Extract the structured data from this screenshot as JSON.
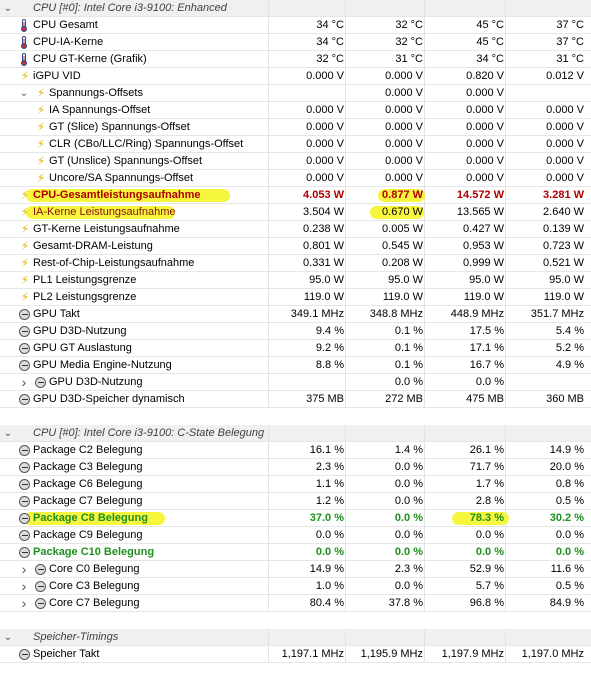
{
  "sections": [
    {
      "title": "CPU [#0]: Intel Core i3-9100: Enhanced",
      "rows": [
        {
          "icon": "thermometer-icon",
          "label": "CPU Gesamt",
          "values": [
            "34 °C",
            "32 °C",
            "45 °C",
            "37 °C"
          ]
        },
        {
          "icon": "thermometer-icon",
          "label": "CPU-IA-Kerne",
          "values": [
            "34 °C",
            "32 °C",
            "45 °C",
            "37 °C"
          ]
        },
        {
          "icon": "thermometer-icon",
          "label": "CPU GT-Kerne (Grafik)",
          "values": [
            "32 °C",
            "31 °C",
            "34 °C",
            "31 °C"
          ]
        },
        {
          "icon": "bolt-icon",
          "label": "iGPU VID",
          "values": [
            "0.000 V",
            "0.000 V",
            "0.820 V",
            "0.012 V"
          ]
        },
        {
          "icon": "bolt-icon",
          "label": "Spannungs-Offsets",
          "values": [
            "",
            "0.000 V",
            "0.000 V",
            ""
          ],
          "expand": true,
          "indent": 1
        },
        {
          "icon": "bolt-icon",
          "label": "IA Spannungs-Offset",
          "values": [
            "0.000 V",
            "0.000 V",
            "0.000 V",
            "0.000 V"
          ],
          "indent": 2
        },
        {
          "icon": "bolt-icon",
          "label": "GT (Slice) Spannungs-Offset",
          "values": [
            "0.000 V",
            "0.000 V",
            "0.000 V",
            "0.000 V"
          ],
          "indent": 2
        },
        {
          "icon": "bolt-icon",
          "label": "CLR (CBo/LLC/Ring) Spannungs-Offset",
          "values": [
            "0.000 V",
            "0.000 V",
            "0.000 V",
            "0.000 V"
          ],
          "indent": 2
        },
        {
          "icon": "bolt-icon",
          "label": "GT (Unslice) Spannungs-Offset",
          "values": [
            "0.000 V",
            "0.000 V",
            "0.000 V",
            "0.000 V"
          ],
          "indent": 2
        },
        {
          "icon": "bolt-icon",
          "label": "Uncore/SA Spannungs-Offset",
          "values": [
            "0.000 V",
            "0.000 V",
            "0.000 V",
            "0.000 V"
          ],
          "indent": 2
        },
        {
          "icon": "bolt-icon",
          "label": "CPU-Gesamtleistungsaufnahme",
          "values": [
            "4.053 W",
            "0.877 W",
            "14.572 W",
            "3.281 W"
          ],
          "style": "red"
        },
        {
          "icon": "bolt-icon",
          "label": "IA-Kerne Leistungsaufnahme",
          "values": [
            "3.504 W",
            "0.670 W",
            "13.565 W",
            "2.640 W"
          ],
          "style": "darkred"
        },
        {
          "icon": "bolt-icon",
          "label": "GT-Kerne Leistungsaufnahme",
          "values": [
            "0.238 W",
            "0.005 W",
            "0.427 W",
            "0.139 W"
          ]
        },
        {
          "icon": "bolt-icon",
          "label": "Gesamt-DRAM-Leistung",
          "values": [
            "0.801 W",
            "0.545 W",
            "0.953 W",
            "0.723 W"
          ]
        },
        {
          "icon": "bolt-icon",
          "label": "Rest-of-Chip-Leistungsaufnahme",
          "values": [
            "0.331 W",
            "0.208 W",
            "0.999 W",
            "0.521 W"
          ]
        },
        {
          "icon": "bolt-icon",
          "label": "PL1 Leistungsgrenze",
          "values": [
            "95.0 W",
            "95.0 W",
            "95.0 W",
            "95.0 W"
          ]
        },
        {
          "icon": "bolt-icon",
          "label": "PL2 Leistungsgrenze",
          "values": [
            "119.0 W",
            "119.0 W",
            "119.0 W",
            "119.0 W"
          ]
        },
        {
          "icon": "gauge-icon",
          "label": "GPU Takt",
          "values": [
            "349.1 MHz",
            "348.8 MHz",
            "448.9 MHz",
            "351.7 MHz"
          ]
        },
        {
          "icon": "gauge-icon",
          "label": "GPU D3D-Nutzung",
          "values": [
            "9.4 %",
            "0.1 %",
            "17.5 %",
            "5.4 %"
          ]
        },
        {
          "icon": "gauge-icon",
          "label": "GPU GT Auslastung",
          "values": [
            "9.2 %",
            "0.1 %",
            "17.1 %",
            "5.2 %"
          ]
        },
        {
          "icon": "gauge-icon",
          "label": "GPU Media Engine-Nutzung",
          "values": [
            "8.8 %",
            "0.1 %",
            "16.7 %",
            "4.9 %"
          ]
        },
        {
          "icon": "gauge-icon",
          "label": "GPU D3D-Nutzung",
          "values": [
            "",
            "0.0 %",
            "0.0 %",
            ""
          ],
          "expand": true,
          "indent": 1,
          "collapsed": true
        },
        {
          "icon": "gauge-icon",
          "label": "GPU D3D-Speicher dynamisch",
          "values": [
            "375 MB",
            "272 MB",
            "475 MB",
            "360 MB"
          ]
        }
      ]
    },
    {
      "title": "CPU [#0]: Intel Core i3-9100: C-State Belegung",
      "rows": [
        {
          "icon": "gauge-icon",
          "label": "Package C2 Belegung",
          "values": [
            "16.1 %",
            "1.4 %",
            "26.1 %",
            "14.9 %"
          ]
        },
        {
          "icon": "gauge-icon",
          "label": "Package C3 Belegung",
          "values": [
            "2.3 %",
            "0.0 %",
            "71.7 %",
            "20.0 %"
          ]
        },
        {
          "icon": "gauge-icon",
          "label": "Package C6 Belegung",
          "values": [
            "1.1 %",
            "0.0 %",
            "1.7 %",
            "0.8 %"
          ]
        },
        {
          "icon": "gauge-icon",
          "label": "Package C7 Belegung",
          "values": [
            "1.2 %",
            "0.0 %",
            "2.8 %",
            "0.5 %"
          ]
        },
        {
          "icon": "gauge-icon",
          "label": "Package C8 Belegung",
          "values": [
            "37.0 %",
            "0.0 %",
            "78.3 %",
            "30.2 %"
          ],
          "style": "green"
        },
        {
          "icon": "gauge-icon",
          "label": "Package C9 Belegung",
          "values": [
            "0.0 %",
            "0.0 %",
            "0.0 %",
            "0.0 %"
          ]
        },
        {
          "icon": "gauge-icon",
          "label": "Package C10 Belegung",
          "values": [
            "0.0 %",
            "0.0 %",
            "0.0 %",
            "0.0 %"
          ],
          "style": "green"
        },
        {
          "icon": "gauge-icon",
          "label": "Core C0 Belegung",
          "values": [
            "14.9 %",
            "2.3 %",
            "52.9 %",
            "11.6 %"
          ],
          "expand": true,
          "indent": 1,
          "collapsed": true
        },
        {
          "icon": "gauge-icon",
          "label": "Core C3 Belegung",
          "values": [
            "1.0 %",
            "0.0 %",
            "5.7 %",
            "0.5 %"
          ],
          "expand": true,
          "indent": 1,
          "collapsed": true
        },
        {
          "icon": "gauge-icon",
          "label": "Core C7 Belegung",
          "values": [
            "80.4 %",
            "37.8 %",
            "96.8 %",
            "84.9 %"
          ],
          "expand": true,
          "indent": 1,
          "collapsed": true
        }
      ]
    },
    {
      "title": "Speicher-Timings",
      "rows": [
        {
          "icon": "gauge-icon",
          "label": "Speicher Takt",
          "values": [
            "1,197.1 MHz",
            "1,195.9 MHz",
            "1,197.9 MHz",
            "1,197.0 MHz"
          ]
        }
      ]
    }
  ],
  "highlight_color": "#f5f52a",
  "colors": {
    "red": "#b00000",
    "green": "#1f8f1f",
    "bolt": "#e6b800"
  }
}
